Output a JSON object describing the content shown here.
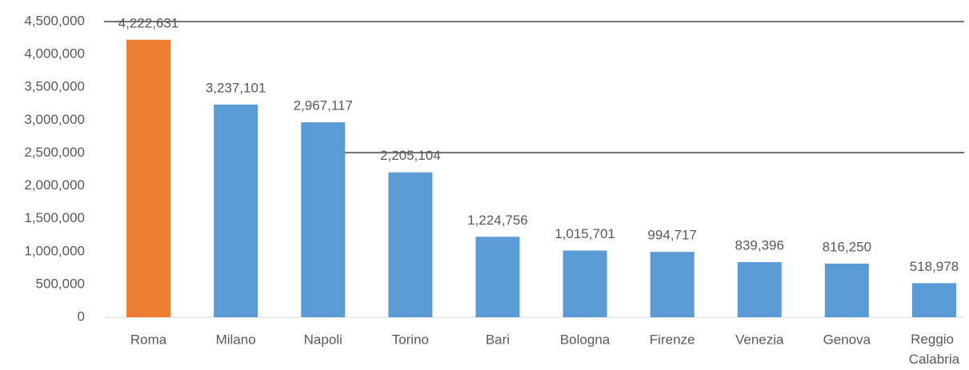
{
  "chart_data": {
    "type": "bar",
    "categories": [
      "Roma",
      "Milano",
      "Napoli",
      "Torino",
      "Bari",
      "Bologna",
      "Firenze",
      "Venezia",
      "Genova",
      "Reggio Calabria"
    ],
    "values": [
      4222631,
      3237101,
      2967117,
      2205104,
      1224756,
      1015701,
      994717,
      839396,
      816250,
      518978
    ],
    "value_labels": [
      "4,222,631",
      "3,237,101",
      "2,967,117",
      "2,205,104",
      "1,224,756",
      "1,015,701",
      "994,717",
      "839,396",
      "816,250",
      "518,978"
    ],
    "colors": [
      "#ed7d31",
      "#5b9bd5",
      "#5b9bd5",
      "#5b9bd5",
      "#5b9bd5",
      "#5b9bd5",
      "#5b9bd5",
      "#5b9bd5",
      "#5b9bd5",
      "#5b9bd5"
    ],
    "ylim": [
      0,
      4500000
    ],
    "yticks": [
      0,
      {
        "value": 500000,
        "label": "500,000"
      },
      {
        "value": 1000000,
        "label": "1,000,000"
      },
      {
        "value": 1500000,
        "label": "1,500,000"
      },
      {
        "value": 2000000,
        "label": "2,000,000"
      },
      {
        "value": 2500000,
        "label": "2,500,000"
      },
      {
        "value": 3000000,
        "label": "3,000,000"
      },
      {
        "value": 3500000,
        "label": "3,500,000"
      },
      {
        "value": 4000000,
        "label": "4,000,000"
      },
      {
        "value": 4500000,
        "label": "4,500,000"
      }
    ],
    "grid": false
  }
}
